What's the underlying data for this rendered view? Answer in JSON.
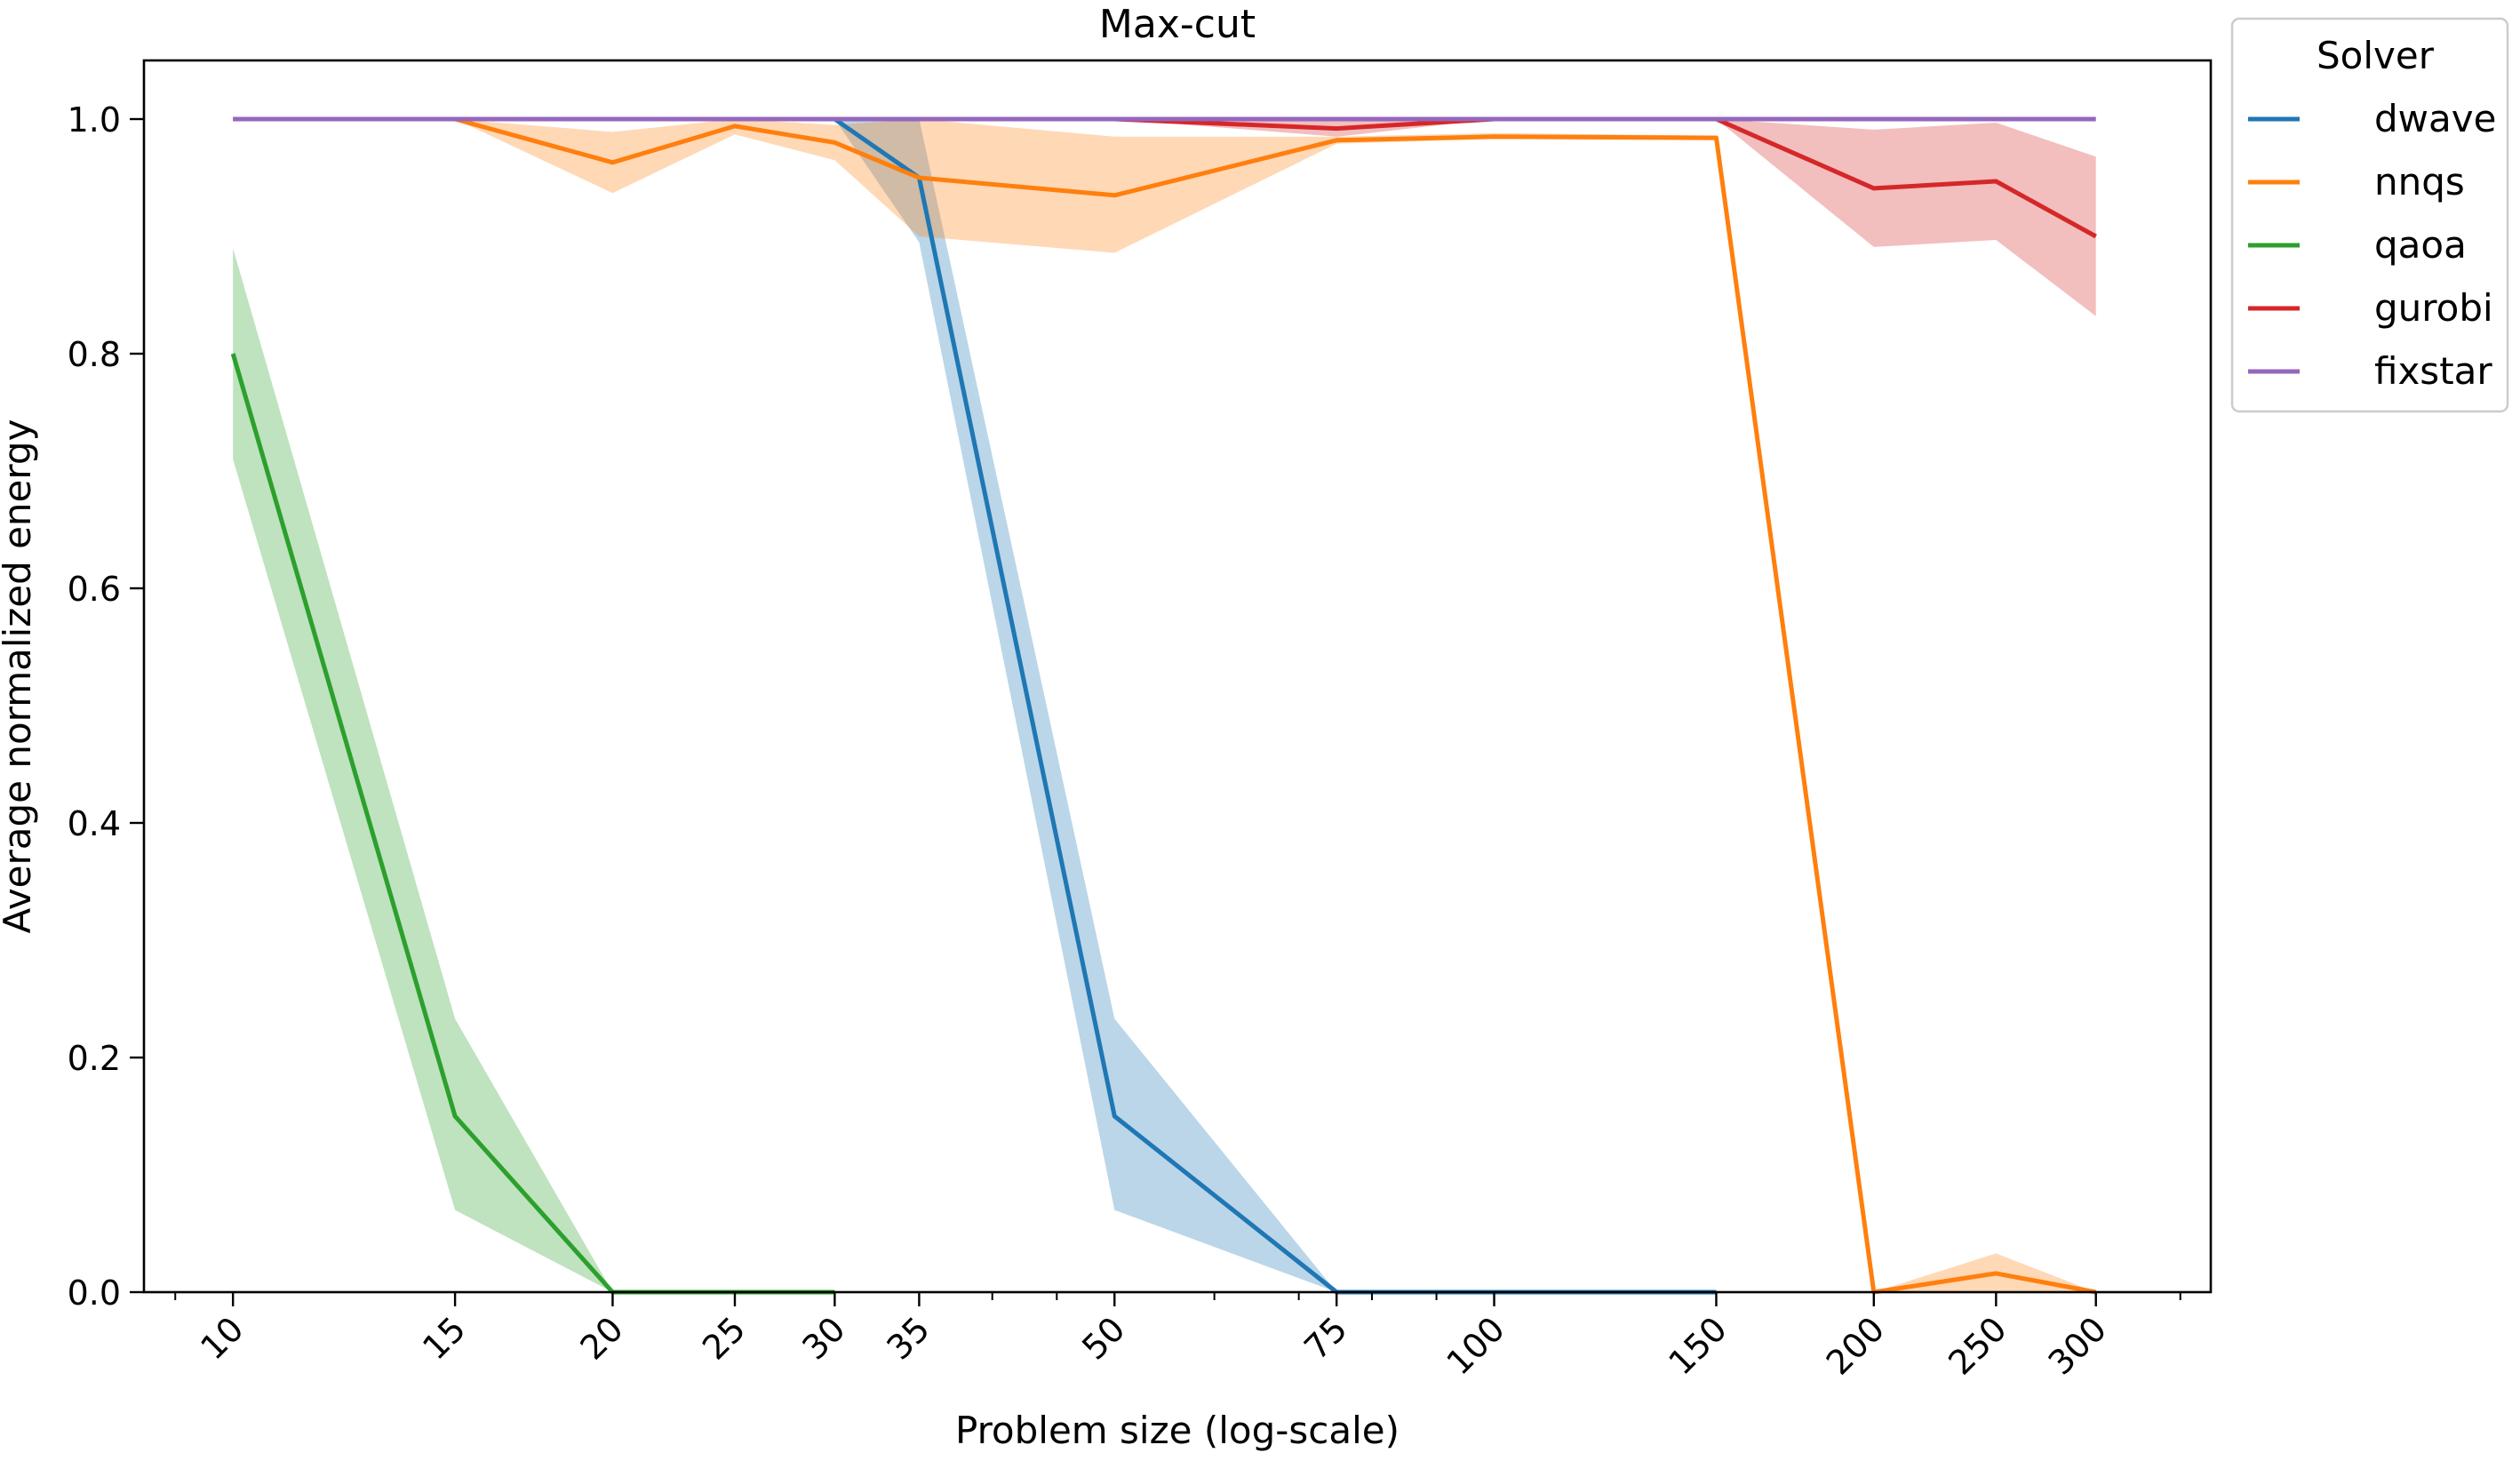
{
  "chart_data": {
    "type": "line",
    "title": "Max-cut",
    "xlabel": "Problem size (log-scale)",
    "ylabel": "Average normalized energy",
    "x_scale": "log",
    "xlim": [
      8.5,
      370
    ],
    "ylim": [
      0.0,
      1.05
    ],
    "x_ticks": [
      10,
      15,
      20,
      25,
      30,
      35,
      50,
      75,
      100,
      150,
      200,
      250,
      300
    ],
    "x_tick_labels": [
      "10",
      "15",
      "20",
      "25",
      "30",
      "35",
      "50",
      "75",
      "100",
      "150",
      "200",
      "250",
      "300"
    ],
    "y_ticks": [
      0.0,
      0.2,
      0.4,
      0.6,
      0.8,
      1.0
    ],
    "y_tick_labels": [
      "0.0",
      "0.2",
      "0.4",
      "0.6",
      "0.8",
      "1.0"
    ],
    "grid": false,
    "legend": {
      "title": "Solver",
      "placement": "outside-right-top"
    },
    "series": [
      {
        "name": "dwave",
        "color": "#1f77b4",
        "x": [
          30,
          35,
          50,
          75,
          100,
          150
        ],
        "y": [
          1.0,
          0.95,
          0.15,
          0.0,
          0.0,
          0.0
        ],
        "lower": [
          1.0,
          0.895,
          0.07,
          0.0,
          0.0,
          0.0
        ],
        "upper": [
          1.0,
          1.0,
          0.233,
          0.0,
          0.0,
          0.0
        ]
      },
      {
        "name": "nnqs",
        "color": "#ff7f0e",
        "x": [
          10,
          15,
          20,
          25,
          30,
          35,
          50,
          75,
          100,
          150,
          200,
          250,
          300
        ],
        "y": [
          1.0,
          1.0,
          0.963,
          0.994,
          0.98,
          0.95,
          0.935,
          0.982,
          0.985,
          0.984,
          0.0,
          0.016,
          0.0
        ],
        "lower": [
          1.0,
          1.0,
          0.937,
          0.987,
          0.965,
          0.9,
          0.886,
          0.979,
          0.983,
          0.982,
          0.0,
          0.0,
          0.0
        ],
        "upper": [
          1.0,
          1.0,
          0.989,
          1.0,
          0.995,
          1.0,
          0.985,
          0.985,
          0.988,
          0.986,
          0.0,
          0.033,
          0.0
        ]
      },
      {
        "name": "qaoa",
        "color": "#2ca02c",
        "x": [
          10,
          15,
          20,
          25,
          30
        ],
        "y": [
          0.8,
          0.15,
          0.0,
          0.0,
          0.0
        ],
        "lower": [
          0.71,
          0.07,
          0.0,
          0.0,
          0.0
        ],
        "upper": [
          0.89,
          0.233,
          0.0,
          0.0,
          0.0
        ]
      },
      {
        "name": "gurobi",
        "color": "#d62728",
        "x": [
          25,
          30,
          35,
          50,
          75,
          100,
          150,
          200,
          250,
          300
        ],
        "y": [
          1.0,
          1.0,
          1.0,
          1.0,
          0.992,
          1.0,
          1.0,
          0.941,
          0.947,
          0.9
        ],
        "lower": [
          1.0,
          1.0,
          1.0,
          1.0,
          0.985,
          1.0,
          1.0,
          0.891,
          0.897,
          0.832
        ],
        "upper": [
          1.0,
          1.0,
          1.0,
          1.0,
          1.0,
          1.0,
          1.0,
          0.991,
          0.997,
          0.968
        ]
      },
      {
        "name": "fixstar",
        "color": "#9467bd",
        "x": [
          10,
          15,
          20,
          25,
          30,
          35,
          50,
          75,
          100,
          150,
          200,
          250,
          300
        ],
        "y": [
          1.0,
          1.0,
          1.0,
          1.0,
          1.0,
          1.0,
          1.0,
          1.0,
          1.0,
          1.0,
          1.0,
          1.0,
          1.0
        ],
        "lower": [
          1.0,
          1.0,
          1.0,
          1.0,
          1.0,
          1.0,
          1.0,
          1.0,
          1.0,
          1.0,
          1.0,
          1.0,
          1.0
        ],
        "upper": [
          1.0,
          1.0,
          1.0,
          1.0,
          1.0,
          1.0,
          1.0,
          1.0,
          1.0,
          1.0,
          1.0,
          1.0,
          1.0
        ]
      }
    ]
  }
}
